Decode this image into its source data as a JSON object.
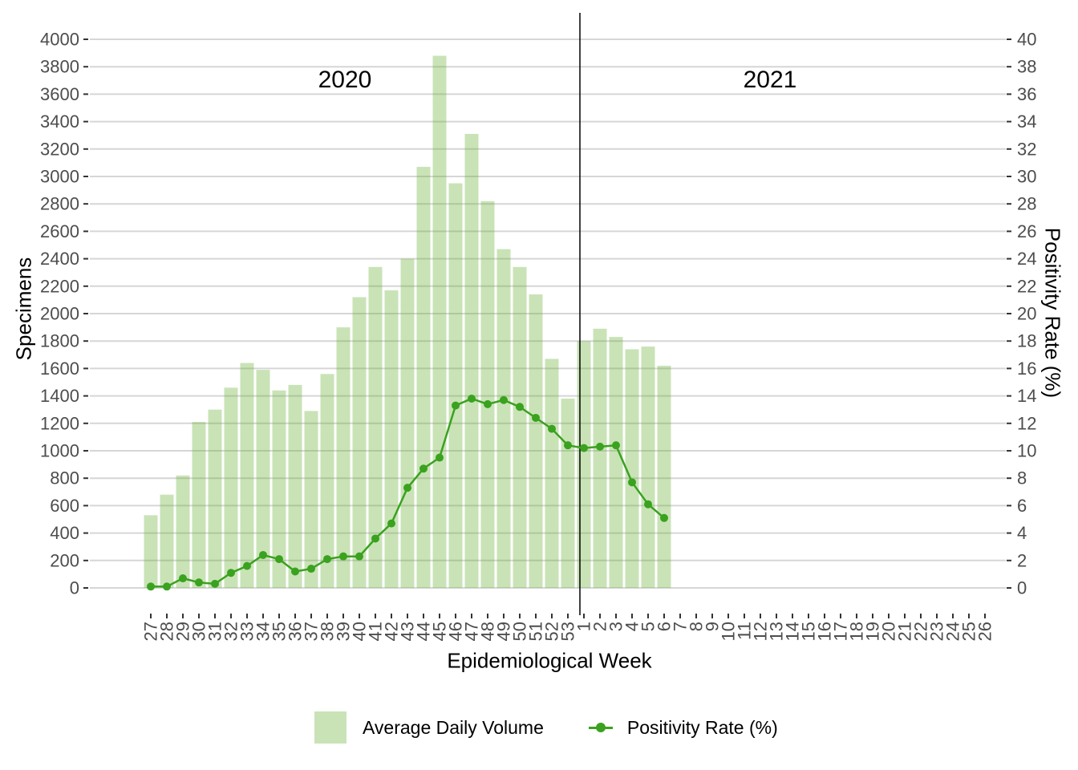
{
  "chart_data": {
    "type": "combo",
    "title": "",
    "xlabel": "Epidemiological Week",
    "x_categories": [
      "27",
      "28",
      "29",
      "30",
      "31",
      "32",
      "33",
      "34",
      "35",
      "36",
      "37",
      "38",
      "39",
      "40",
      "41",
      "42",
      "43",
      "44",
      "45",
      "46",
      "47",
      "48",
      "49",
      "50",
      "51",
      "52",
      "53",
      "1",
      "2",
      "3",
      "4",
      "5",
      "6",
      "7",
      "8",
      "9",
      "10",
      "11",
      "12",
      "13",
      "14",
      "15",
      "16",
      "17",
      "18",
      "19",
      "20",
      "21",
      "22",
      "23",
      "24",
      "25",
      "26"
    ],
    "annotations": {
      "year_left": "2020",
      "year_right": "2021",
      "divider_between_weeks": [
        "53",
        "1"
      ]
    },
    "axes": {
      "left": {
        "label": "Specimens",
        "min": 0,
        "max": 4000,
        "step": 200,
        "ticks": [
          0,
          200,
          400,
          600,
          800,
          1000,
          1200,
          1400,
          1600,
          1800,
          2000,
          2200,
          2400,
          2600,
          2800,
          3000,
          3200,
          3400,
          3600,
          3800,
          4000
        ]
      },
      "right": {
        "label": "Positivity Rate (%)",
        "min": 0,
        "max": 40,
        "step": 2,
        "ticks": [
          0,
          2,
          4,
          6,
          8,
          10,
          12,
          14,
          16,
          18,
          20,
          22,
          24,
          26,
          28,
          30,
          32,
          34,
          36,
          38,
          40
        ]
      }
    },
    "grid": "horizontal",
    "legend_position": "bottom",
    "series": [
      {
        "name": "Average Daily Volume",
        "type": "bar",
        "axis": "left",
        "color": "#c9e3b7",
        "fill": "rgba(101,175,49,0.35)",
        "values": [
          530,
          680,
          820,
          1210,
          1300,
          1460,
          1640,
          1590,
          1440,
          1480,
          1290,
          1560,
          1900,
          2120,
          2340,
          2170,
          2400,
          3070,
          3880,
          2950,
          3310,
          2820,
          2470,
          2340,
          2140,
          1670,
          1380,
          1800,
          1890,
          1830,
          1740,
          1760,
          1620,
          null,
          null,
          null,
          null,
          null,
          null,
          null,
          null,
          null,
          null,
          null,
          null,
          null,
          null,
          null,
          null,
          null,
          null,
          null,
          null
        ]
      },
      {
        "name": "Positivity Rate (%)",
        "type": "line",
        "axis": "right",
        "color": "#3aa21f",
        "values": [
          0.1,
          0.1,
          0.7,
          0.4,
          0.3,
          1.1,
          1.6,
          2.4,
          2.1,
          1.2,
          1.4,
          2.1,
          2.3,
          2.3,
          3.6,
          4.7,
          7.3,
          8.7,
          9.5,
          13.3,
          13.8,
          13.4,
          13.7,
          13.2,
          12.4,
          11.6,
          10.4,
          10.2,
          10.3,
          10.4,
          7.7,
          6.1,
          5.1,
          null,
          null,
          null,
          null,
          null,
          null,
          null,
          null,
          null,
          null,
          null,
          null,
          null,
          null,
          null,
          null,
          null,
          null,
          null,
          null
        ]
      }
    ]
  },
  "colors": {
    "background": "#ffffff",
    "grid": "#d6d6d6",
    "tick": "#333333",
    "tick_label": "#4d4d4d",
    "divider": "#000000"
  }
}
